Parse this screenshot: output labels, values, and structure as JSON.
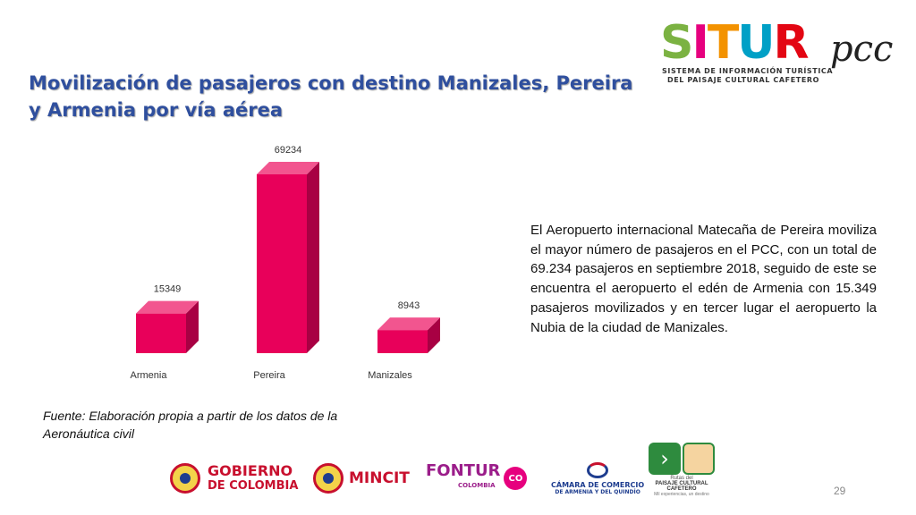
{
  "title": {
    "line1": "Movilización de pasajeros con destino Manizales, Pereira",
    "line2": "y Armenia por vía aérea"
  },
  "logo": {
    "letters": [
      "S",
      "I",
      "T",
      "U",
      "R"
    ],
    "letter_colors": [
      "#7bb242",
      "#e6007e",
      "#f39200",
      "#00a0c6",
      "#e30613"
    ],
    "pcc": "pcc",
    "subtitle_line1": "SISTEMA DE INFORMACIÓN TURÍSTICA",
    "subtitle_line2": "DEL PAISAJE CULTURAL CAFETERO"
  },
  "chart_data": {
    "type": "bar",
    "categories": [
      "Armenia",
      "Pereira",
      "Manizales"
    ],
    "values": [
      15349,
      69234,
      8943
    ],
    "data_labels": [
      "15349",
      "69234",
      "8943"
    ],
    "title": "",
    "xlabel": "",
    "ylabel": "",
    "ylim": [
      0,
      69234
    ],
    "grid": false,
    "legend": "none",
    "bar_color": "#e8005a",
    "bar_side_color": "#a80043",
    "bar_top_color": "#f2558f",
    "style": "3d-columns"
  },
  "description": "El Aeropuerto internacional Matecaña de Pereira moviliza el mayor número de pasajeros en el PCC, con un total de 69.234 pasajeros en septiembre 2018, seguido de este se encuentra el aeropuerto el edén de Armenia con 15.349 pasajeros movilizados y en tercer lugar el aeropuerto la Nubia de la ciudad de Manizales.",
  "source": "Fuente: Elaboración propia a partir de los datos de la Aeronáutica civil",
  "footer": {
    "gobierno_line1": "GOBIERNO",
    "gobierno_line2": "DE COLOMBIA",
    "mincit": "MINCIT",
    "fontur": "FONTUR",
    "fontur_sub": "COLOMBIA",
    "co_badge": "CO",
    "camara_line1": "CÁMARA DE COMERCIO",
    "camara_line2": "DE ARMENIA Y DEL QUINDÍO",
    "rutas_line1": "Rutas del",
    "rutas_line2": "PAISAJE CULTURAL CAFETERO",
    "rutas_line3": "Mil experiencias, un destino",
    "page_number": "29"
  }
}
